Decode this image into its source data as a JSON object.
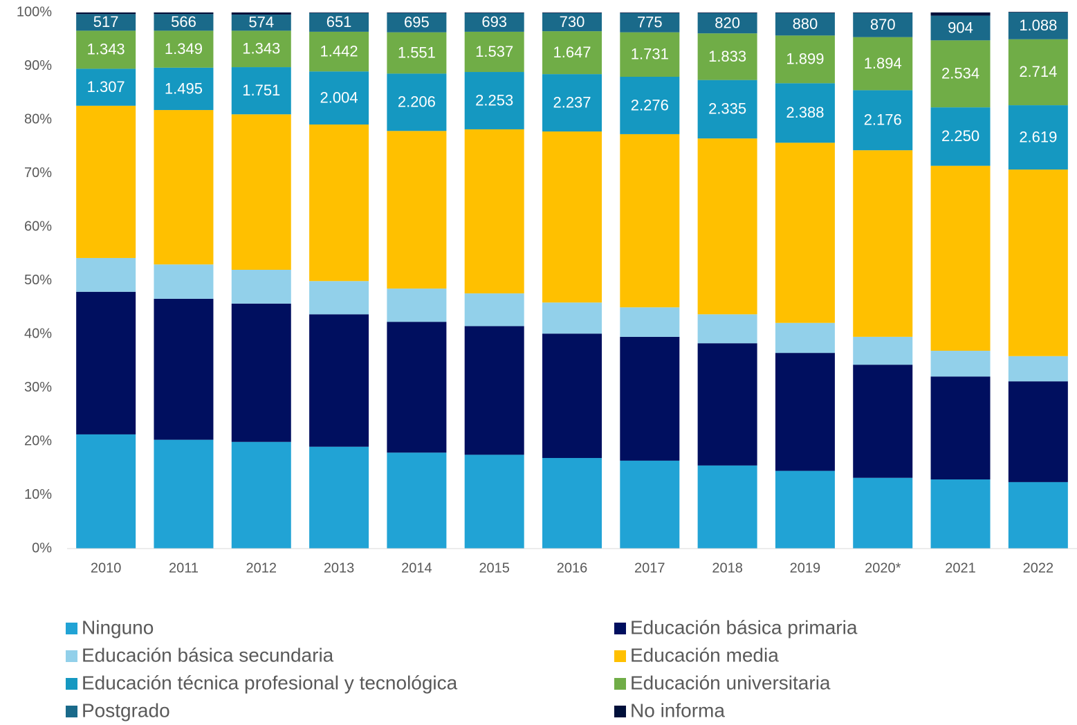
{
  "chart_data": {
    "type": "stacked_bar_100",
    "categories": [
      "2010",
      "2011",
      "2012",
      "2013",
      "2014",
      "2015",
      "2016",
      "2017",
      "2018",
      "2019",
      "2020*",
      "2021",
      "2022"
    ],
    "series": [
      {
        "name": "Ninguno",
        "color": "#21a3d5",
        "values": [
          21.3,
          20.3,
          19.9,
          19.0,
          17.9,
          17.5,
          16.9,
          16.4,
          15.5,
          14.5,
          13.2,
          12.9,
          12.4
        ]
      },
      {
        "name": "Educación básica primaria",
        "color": "#000f5f",
        "values": [
          26.6,
          26.3,
          25.8,
          24.7,
          24.4,
          24.0,
          23.2,
          23.1,
          22.8,
          22.0,
          21.1,
          19.2,
          18.8
        ]
      },
      {
        "name": "Educación básica secundaria",
        "color": "#92d0ea",
        "values": [
          6.3,
          6.4,
          6.3,
          6.2,
          6.2,
          6.1,
          5.8,
          5.5,
          5.4,
          5.6,
          5.2,
          4.8,
          4.7
        ]
      },
      {
        "name": "Educación media",
        "color": "#ffc000",
        "values": [
          28.4,
          28.8,
          29.0,
          29.2,
          29.4,
          30.6,
          31.9,
          32.3,
          32.8,
          33.6,
          34.8,
          34.5,
          34.8
        ]
      },
      {
        "name": "Educación técnica profesional y tecnológica",
        "color": "#1598c1",
        "values": [
          6.9,
          7.9,
          8.8,
          9.9,
          10.7,
          10.7,
          10.7,
          10.7,
          10.9,
          11.1,
          11.2,
          10.9,
          12.0
        ],
        "labels": [
          "1.307",
          "1.495",
          "1.751",
          "2.004",
          "2.206",
          "2.253",
          "2.237",
          "2.276",
          "2.335",
          "2.388",
          "2.176",
          "2.250",
          "2.619"
        ]
      },
      {
        "name": "Educación universitaria",
        "color": "#70ad47",
        "values": [
          7.1,
          6.9,
          6.8,
          7.4,
          7.7,
          7.5,
          8.0,
          8.3,
          8.7,
          8.9,
          9.9,
          12.5,
          12.3
        ],
        "labels": [
          "1.343",
          "1.349",
          "1.343",
          "1.442",
          "1.551",
          "1.537",
          "1.647",
          "1.731",
          "1.833",
          "1.899",
          "1.894",
          "2.534",
          "2.714"
        ]
      },
      {
        "name": "Postgrado",
        "color": "#1a6a8a",
        "values": [
          3.1,
          3.1,
          3.0,
          3.5,
          3.6,
          3.5,
          3.4,
          3.6,
          3.8,
          4.2,
          4.5,
          4.6,
          5.0
        ],
        "labels": [
          "517",
          "566",
          "574",
          "651",
          "695",
          "693",
          "730",
          "775",
          "820",
          "880",
          "870",
          "904",
          "1.088"
        ]
      },
      {
        "name": "No informa",
        "color": "#00103a",
        "values": [
          0.3,
          0.3,
          0.4,
          0.1,
          0.1,
          0.1,
          0.1,
          0.1,
          0.1,
          0.1,
          0.1,
          0.6,
          0.1
        ]
      }
    ],
    "ylim": [
      0,
      100
    ],
    "yticks": [
      {
        "value": 0,
        "label": "0%"
      },
      {
        "value": 10,
        "label": "10%"
      },
      {
        "value": 20,
        "label": "20%"
      },
      {
        "value": 30,
        "label": "30%"
      },
      {
        "value": 40,
        "label": "40%"
      },
      {
        "value": 50,
        "label": "50%"
      },
      {
        "value": 60,
        "label": "60%"
      },
      {
        "value": 70,
        "label": "70%"
      },
      {
        "value": 80,
        "label": "80%"
      },
      {
        "value": 90,
        "label": "90%"
      },
      {
        "value": 100,
        "label": "100%"
      }
    ],
    "grid": false,
    "legend": "bottom"
  }
}
